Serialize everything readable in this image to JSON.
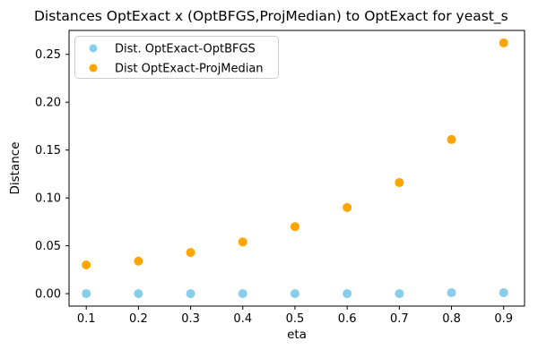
{
  "chart_data": {
    "type": "scatter",
    "title": "Distances OptExact x (OptBFGS,ProjMedian) to OptExact for yeast_s",
    "xlabel": "eta",
    "ylabel": "Distance",
    "x": [
      0.1,
      0.2,
      0.3,
      0.4,
      0.5,
      0.6,
      0.7,
      0.8,
      0.9
    ],
    "series": [
      {
        "name": "Dist. OptExact-OptBFGS",
        "color": "#87CEEB",
        "values": [
          0.0,
          0.0,
          0.0,
          0.0,
          0.0,
          0.0,
          0.0,
          0.001,
          0.001
        ]
      },
      {
        "name": "Dist OptExact-ProjMedian",
        "color": "#FFA500",
        "values": [
          0.03,
          0.034,
          0.043,
          0.054,
          0.07,
          0.09,
          0.116,
          0.161,
          0.262
        ]
      }
    ],
    "xticks": [
      "0.1",
      "0.2",
      "0.3",
      "0.4",
      "0.5",
      "0.6",
      "0.7",
      "0.8",
      "0.9"
    ],
    "yticks": [
      "0.00",
      "0.05",
      "0.10",
      "0.15",
      "0.20",
      "0.25"
    ],
    "xlim": [
      0.067,
      0.94
    ],
    "ylim": [
      -0.013,
      0.275
    ],
    "grid": false,
    "legend_position": "upper left",
    "axis_color": "#000000",
    "legend_border_color": "#cccccc",
    "background": "#ffffff"
  }
}
